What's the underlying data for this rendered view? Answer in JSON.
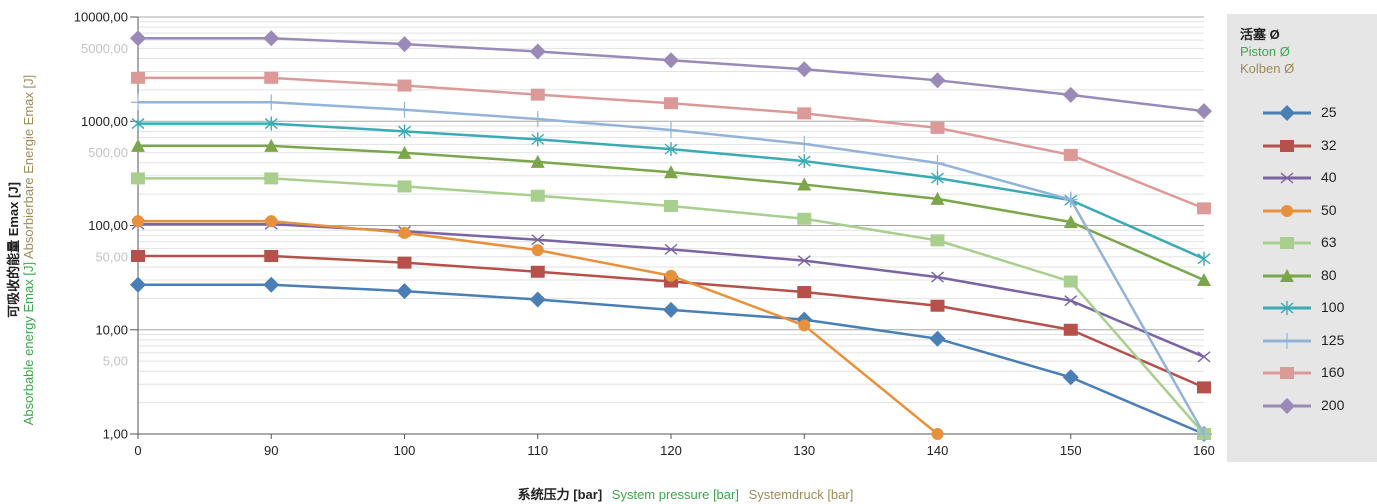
{
  "axis_labels": {
    "y": {
      "zh": "可吸收的能量 Emax [J]",
      "en": "Absorbable energy Emax [J]",
      "de": "Absorbierbare Energie Emax [J]"
    },
    "x": {
      "zh": "系统压力 [bar]",
      "en": "System pressure [bar]",
      "de": "Systemdruck [bar]"
    }
  },
  "legend": {
    "title_zh": "活塞 Ø",
    "title_en": "Piston Ø",
    "title_de": "Kolben Ø"
  },
  "colors": {
    "zh": "#222222",
    "en": "#3aa84a",
    "de": "#9c8b5a",
    "legend_bg": "#e6e6e6"
  },
  "chart_data": {
    "type": "line",
    "x_scale": "categorical",
    "y_scale": "log",
    "categories": [
      "0",
      "90",
      "100",
      "110",
      "120",
      "130",
      "140",
      "150",
      "160"
    ],
    "ylim": [
      1,
      10000
    ],
    "y_major_ticks": [
      {
        "value": 1,
        "label": "1,00"
      },
      {
        "value": 10,
        "label": "10,00"
      },
      {
        "value": 100,
        "label": "100,00"
      },
      {
        "value": 1000,
        "label": "1000,00"
      },
      {
        "value": 10000,
        "label": "10000,00"
      }
    ],
    "y_minor_ticks": [
      {
        "value": 5,
        "label": "5,00"
      },
      {
        "value": 50,
        "label": "50,00"
      },
      {
        "value": 500,
        "label": "500,00"
      },
      {
        "value": 5000,
        "label": "5000,00"
      }
    ],
    "grid": true,
    "legend_position": "right",
    "series": [
      {
        "name": "25",
        "color": "#4a7fb5",
        "marker": "diamond",
        "values": [
          27,
          27,
          23.5,
          19.5,
          15.5,
          12.5,
          8.2,
          3.5,
          1
        ]
      },
      {
        "name": "32",
        "color": "#b5504a",
        "marker": "square",
        "values": [
          51,
          51,
          44,
          36,
          29,
          23,
          17,
          10,
          2.8
        ]
      },
      {
        "name": "40",
        "color": "#7b64a3",
        "marker": "x",
        "values": [
          103,
          103,
          88,
          73,
          59,
          46,
          32,
          19,
          5.5
        ]
      },
      {
        "name": "50",
        "color": "#e8913d",
        "marker": "circle",
        "values": [
          110,
          110,
          85,
          58,
          33,
          11,
          1,
          null,
          null
        ]
      },
      {
        "name": "63",
        "color": "#a8cf8e",
        "marker": "square",
        "values": [
          283,
          283,
          237,
          193,
          154,
          116,
          72,
          29,
          1
        ]
      },
      {
        "name": "80",
        "color": "#7ba64c",
        "marker": "triangle",
        "values": [
          581,
          581,
          498,
          408,
          324,
          247,
          180,
          108,
          30
        ]
      },
      {
        "name": "100",
        "color": "#3aaab4",
        "marker": "asterisk",
        "values": [
          950,
          950,
          800,
          670,
          540,
          415,
          285,
          175,
          48
        ]
      },
      {
        "name": "125",
        "color": "#93b3d9",
        "marker": "plus",
        "values": [
          1520,
          1520,
          1290,
          1050,
          825,
          607,
          398,
          177,
          1
        ]
      },
      {
        "name": "160",
        "color": "#db9a98",
        "marker": "square",
        "values": [
          2610,
          2610,
          2200,
          1800,
          1490,
          1190,
          864,
          475,
          146
        ]
      },
      {
        "name": "200",
        "color": "#9b89b8",
        "marker": "diamond",
        "values": [
          6250,
          6250,
          5500,
          4670,
          3850,
          3150,
          2470,
          1790,
          1250
        ]
      }
    ]
  }
}
